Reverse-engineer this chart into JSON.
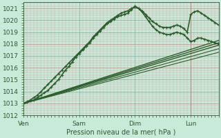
{
  "title": "",
  "xlabel": "Pression niveau de la mer( hPa )",
  "ylabel": "",
  "bg_color": "#c8ead8",
  "plot_bg_color": "#c8ead8",
  "grid_major_color": "#b0c8b8",
  "grid_minor_color": "#c0dcc8",
  "line_color": "#2a5e2a",
  "ylim": [
    1012,
    1021.5
  ],
  "yticks": [
    1012,
    1013,
    1014,
    1015,
    1016,
    1017,
    1018,
    1019,
    1020,
    1021
  ],
  "xtick_labels": [
    "Ven",
    "Sam",
    "Dim",
    "Lun"
  ],
  "xtick_positions": [
    0,
    96,
    192,
    288
  ],
  "total_hours": 336,
  "vline_x": 288,
  "lines": [
    {
      "x": [
        0,
        6,
        12,
        18,
        24,
        30,
        36,
        42,
        48,
        54,
        60,
        66,
        72,
        78,
        84,
        90,
        96,
        102,
        108,
        114,
        120,
        126,
        132,
        138,
        144,
        150,
        156,
        162,
        168,
        174,
        180,
        186,
        192,
        198,
        204,
        210,
        216,
        222,
        228,
        234,
        240,
        246,
        252,
        258,
        264,
        270,
        276,
        282,
        288,
        294,
        300,
        306,
        312,
        318,
        324,
        330,
        336
      ],
      "y": [
        1013.0,
        1013.1,
        1013.2,
        1013.3,
        1013.5,
        1013.7,
        1013.9,
        1014.1,
        1014.4,
        1014.7,
        1015.0,
        1015.4,
        1015.8,
        1016.1,
        1016.5,
        1016.9,
        1017.2,
        1017.5,
        1017.8,
        1018.1,
        1018.5,
        1018.8,
        1019.1,
        1019.4,
        1019.7,
        1019.9,
        1020.1,
        1020.3,
        1020.4,
        1020.5,
        1020.6,
        1020.9,
        1021.2,
        1021.0,
        1020.7,
        1020.3,
        1019.9,
        1019.5,
        1019.2,
        1019.0,
        1018.9,
        1018.8,
        1018.8,
        1018.9,
        1019.0,
        1018.9,
        1018.8,
        1018.5,
        1018.2,
        1018.3,
        1018.5,
        1018.5,
        1018.4,
        1018.3,
        1018.2,
        1018.1,
        1018.0
      ],
      "marker": "+",
      "lw": 1.2,
      "ms": 3
    },
    {
      "x": [
        0,
        6,
        12,
        18,
        24,
        30,
        36,
        42,
        48,
        54,
        60,
        66,
        72,
        78,
        84,
        90,
        96,
        102,
        108,
        114,
        120,
        126,
        132,
        138,
        144,
        150,
        156,
        162,
        168,
        174,
        180,
        186,
        192,
        198,
        204,
        210,
        216,
        222,
        228,
        234,
        240,
        246,
        252,
        258,
        264,
        270,
        276,
        282,
        288,
        294,
        300,
        306,
        312,
        318,
        324,
        330,
        336
      ],
      "y": [
        1013.0,
        1013.15,
        1013.3,
        1013.5,
        1013.7,
        1014.0,
        1014.3,
        1014.6,
        1014.9,
        1015.2,
        1015.5,
        1015.8,
        1016.1,
        1016.4,
        1016.7,
        1017.0,
        1017.3,
        1017.6,
        1017.9,
        1018.2,
        1018.6,
        1018.9,
        1019.2,
        1019.5,
        1019.8,
        1020.0,
        1020.2,
        1020.4,
        1020.6,
        1020.7,
        1020.8,
        1021.0,
        1021.1,
        1021.0,
        1020.8,
        1020.5,
        1020.2,
        1019.9,
        1019.7,
        1019.5,
        1019.4,
        1019.4,
        1019.4,
        1019.5,
        1019.6,
        1019.5,
        1019.3,
        1019.0,
        1020.5,
        1020.7,
        1020.8,
        1020.6,
        1020.4,
        1020.2,
        1020.0,
        1019.8,
        1019.6
      ],
      "marker": "+",
      "lw": 1.2,
      "ms": 3
    },
    {
      "x": [
        0,
        336
      ],
      "y": [
        1013.0,
        1018.3
      ],
      "marker": null,
      "lw": 1.0,
      "ms": 0
    },
    {
      "x": [
        0,
        336
      ],
      "y": [
        1013.0,
        1018.1
      ],
      "marker": null,
      "lw": 1.0,
      "ms": 0
    },
    {
      "x": [
        0,
        336
      ],
      "y": [
        1013.0,
        1017.9
      ],
      "marker": null,
      "lw": 1.0,
      "ms": 0
    },
    {
      "x": [
        0,
        336
      ],
      "y": [
        1013.0,
        1017.6
      ],
      "marker": null,
      "lw": 0.8,
      "ms": 0
    },
    {
      "x": [
        0,
        336
      ],
      "y": [
        1013.0,
        1017.3
      ],
      "marker": null,
      "lw": 0.8,
      "ms": 0
    }
  ]
}
